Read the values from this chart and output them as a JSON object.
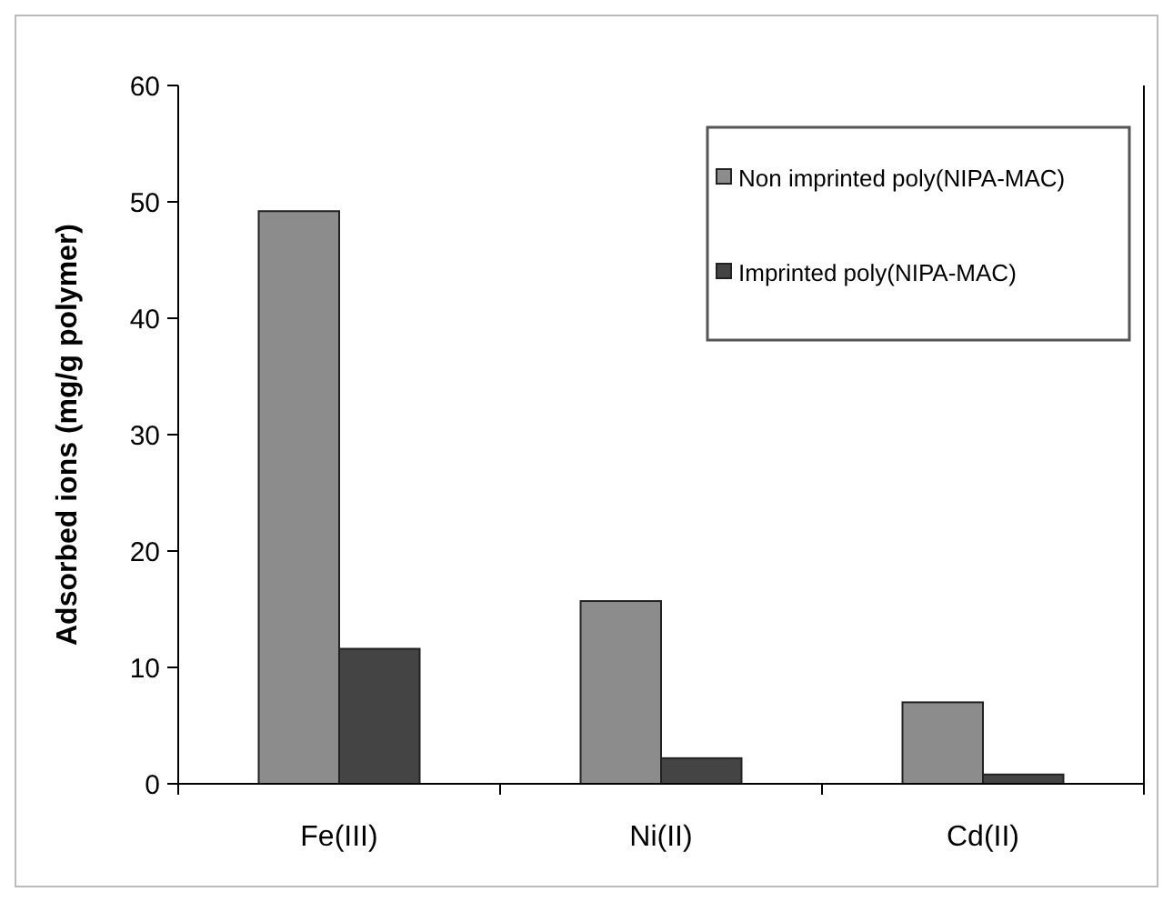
{
  "chart_data": {
    "type": "bar",
    "ylabel": "Adsorbed ions (mg/g polymer)",
    "categories": [
      "Fe(III)",
      "Ni(II)",
      "Cd(II)"
    ],
    "series": [
      {
        "name": "Non imprinted poly(NIPA-MAC)",
        "color": "#8c8c8c",
        "values": [
          49.2,
          15.7,
          7.0
        ]
      },
      {
        "name": "Imprinted poly(NIPA-MAC)",
        "color": "#444444",
        "values": [
          11.6,
          2.2,
          0.8
        ]
      }
    ],
    "ylim": [
      0,
      60
    ],
    "yticks": [
      0,
      10,
      20,
      30,
      40,
      50,
      60
    ],
    "grid": false,
    "legend": "top right"
  }
}
